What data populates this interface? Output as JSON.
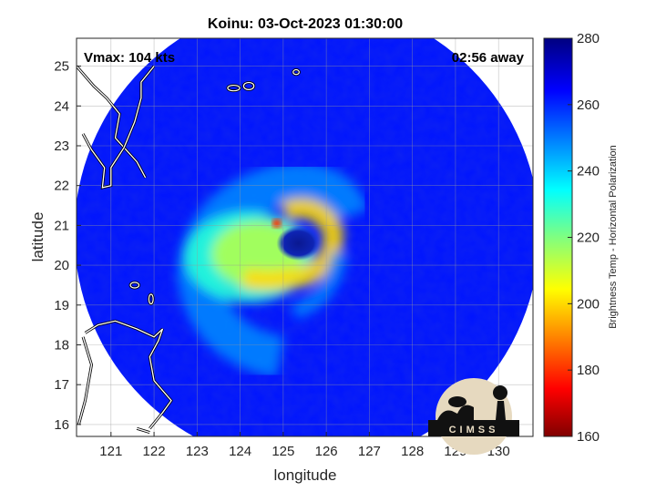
{
  "chart_data": {
    "type": "heatmap",
    "title": "Koinu: 03-Oct-2023 01:30:00",
    "xlabel": "longitude",
    "ylabel": "latitude",
    "xlim": [
      120.2,
      130.8
    ],
    "ylim": [
      15.7,
      25.7
    ],
    "x_ticks": [
      121,
      122,
      123,
      124,
      125,
      126,
      127,
      128,
      129,
      130
    ],
    "y_ticks": [
      16,
      17,
      18,
      19,
      20,
      21,
      22,
      23,
      24,
      25
    ],
    "grid": true,
    "annotations": {
      "vmax": "Vmax: 104 kts",
      "away": "02:56 away"
    },
    "colorbar": {
      "label": "Brightness Temp - Horizontal Polarization",
      "range": [
        160,
        280
      ],
      "ticks": [
        160,
        180,
        200,
        220,
        240,
        260,
        280
      ],
      "colormap": "jet"
    },
    "swath": {
      "center": [
        125.55,
        20.8
      ],
      "radius_deg": 5.4
    },
    "features": {
      "eye": {
        "lon": 125.35,
        "lat": 20.55,
        "value": 272
      },
      "eyewall_min": {
        "lon": 124.85,
        "lat": 21.05,
        "value": 180
      },
      "rainband_values": [
        200,
        215,
        230,
        248
      ],
      "background_value": 262
    },
    "logo_text": "CIMSS"
  }
}
